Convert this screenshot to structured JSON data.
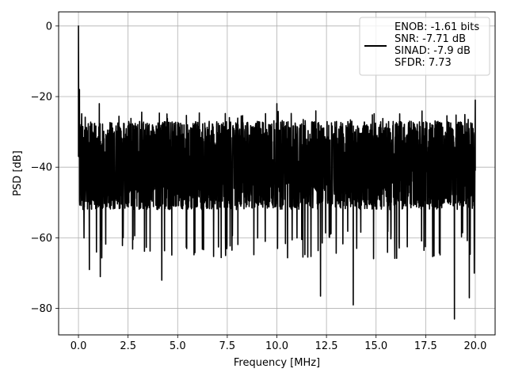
{
  "chart_data": {
    "type": "line",
    "title": "",
    "xlabel": "Frequency [MHz]",
    "ylabel": "PSD [dB]",
    "xlim": [
      -1.0,
      21.0
    ],
    "ylim": [
      -87.5,
      4.0
    ],
    "x_ticks": [
      0.0,
      2.5,
      5.0,
      7.5,
      10.0,
      12.5,
      15.0,
      17.5,
      20.0
    ],
    "x_tick_labels": [
      "0.0",
      "2.5",
      "5.0",
      "7.5",
      "10.0",
      "12.5",
      "15.0",
      "17.5",
      "20.0"
    ],
    "y_ticks": [
      0,
      -20,
      -40,
      -60,
      -80
    ],
    "y_tick_labels": [
      "0",
      "−20",
      "−40",
      "−60",
      "−80"
    ],
    "grid": true,
    "legend_position": "top-right",
    "series": [
      {
        "name": "ENOB: -1.61 bits\nSNR: -7.71 dB\nSINAD: -7.9 dB\nSFDR: 7.73",
        "color": "#000000",
        "noise_floor_db": -40,
        "noise_band_db": [
          -52,
          -27
        ],
        "peaks": [
          {
            "x": 0.0,
            "y": 0
          },
          {
            "x": 0.05,
            "y": -18
          },
          {
            "x": 1.05,
            "y": -22
          },
          {
            "x": 10.0,
            "y": -22
          },
          {
            "x": 20.0,
            "y": -21
          }
        ],
        "dips": [
          {
            "x": 0.55,
            "y": -69
          },
          {
            "x": 1.1,
            "y": -71
          },
          {
            "x": 4.2,
            "y": -72
          },
          {
            "x": 12.2,
            "y": -76.5
          },
          {
            "x": 13.85,
            "y": -79
          },
          {
            "x": 18.95,
            "y": -83
          },
          {
            "x": 19.7,
            "y": -77
          },
          {
            "x": 19.95,
            "y": -70
          }
        ]
      }
    ]
  }
}
